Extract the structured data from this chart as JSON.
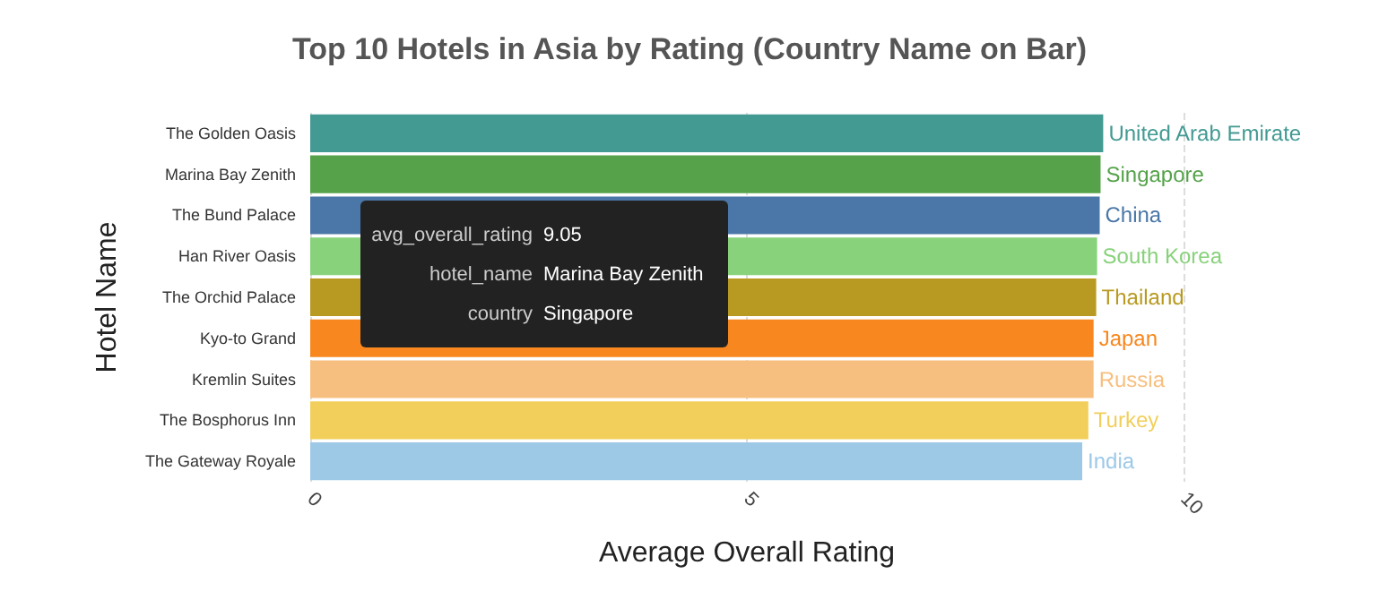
{
  "chart_data": {
    "type": "bar",
    "orientation": "horizontal",
    "title": "Top 10 Hotels in Asia by Rating (Country Name on Bar)",
    "xlabel": "Average Overall Rating",
    "ylabel": "Hotel Name",
    "categories": [
      "The Golden Oasis",
      "Marina Bay Zenith",
      "The Bund Palace",
      "Han River Oasis",
      "The Orchid Palace",
      "Kyo-to Grand",
      "Kremlin Suites",
      "The Bosphorus Inn",
      "The Gateway Royale"
    ],
    "values": [
      9.08,
      9.05,
      9.04,
      9.01,
      9.0,
      8.97,
      8.97,
      8.91,
      8.84
    ],
    "colors": [
      "#439a93",
      "#55a24a",
      "#4a77a8",
      "#88d27b",
      "#b89a22",
      "#f7871e",
      "#f7bf7f",
      "#f2cf5b",
      "#9dc9e7"
    ],
    "value_labels": [
      "United Arab Emirate",
      "Singapore",
      "China",
      "South Korea",
      "Thailand",
      "Japan",
      "Russia",
      "Turkey",
      "India"
    ],
    "xlim": [
      0,
      10
    ],
    "xticks": [
      0,
      5,
      10
    ],
    "grid": "x",
    "annotations": [
      "avg_overall_rating",
      "9.05",
      "hotel_name",
      "Marina Bay Zenith",
      "country",
      "Singapore"
    ]
  }
}
